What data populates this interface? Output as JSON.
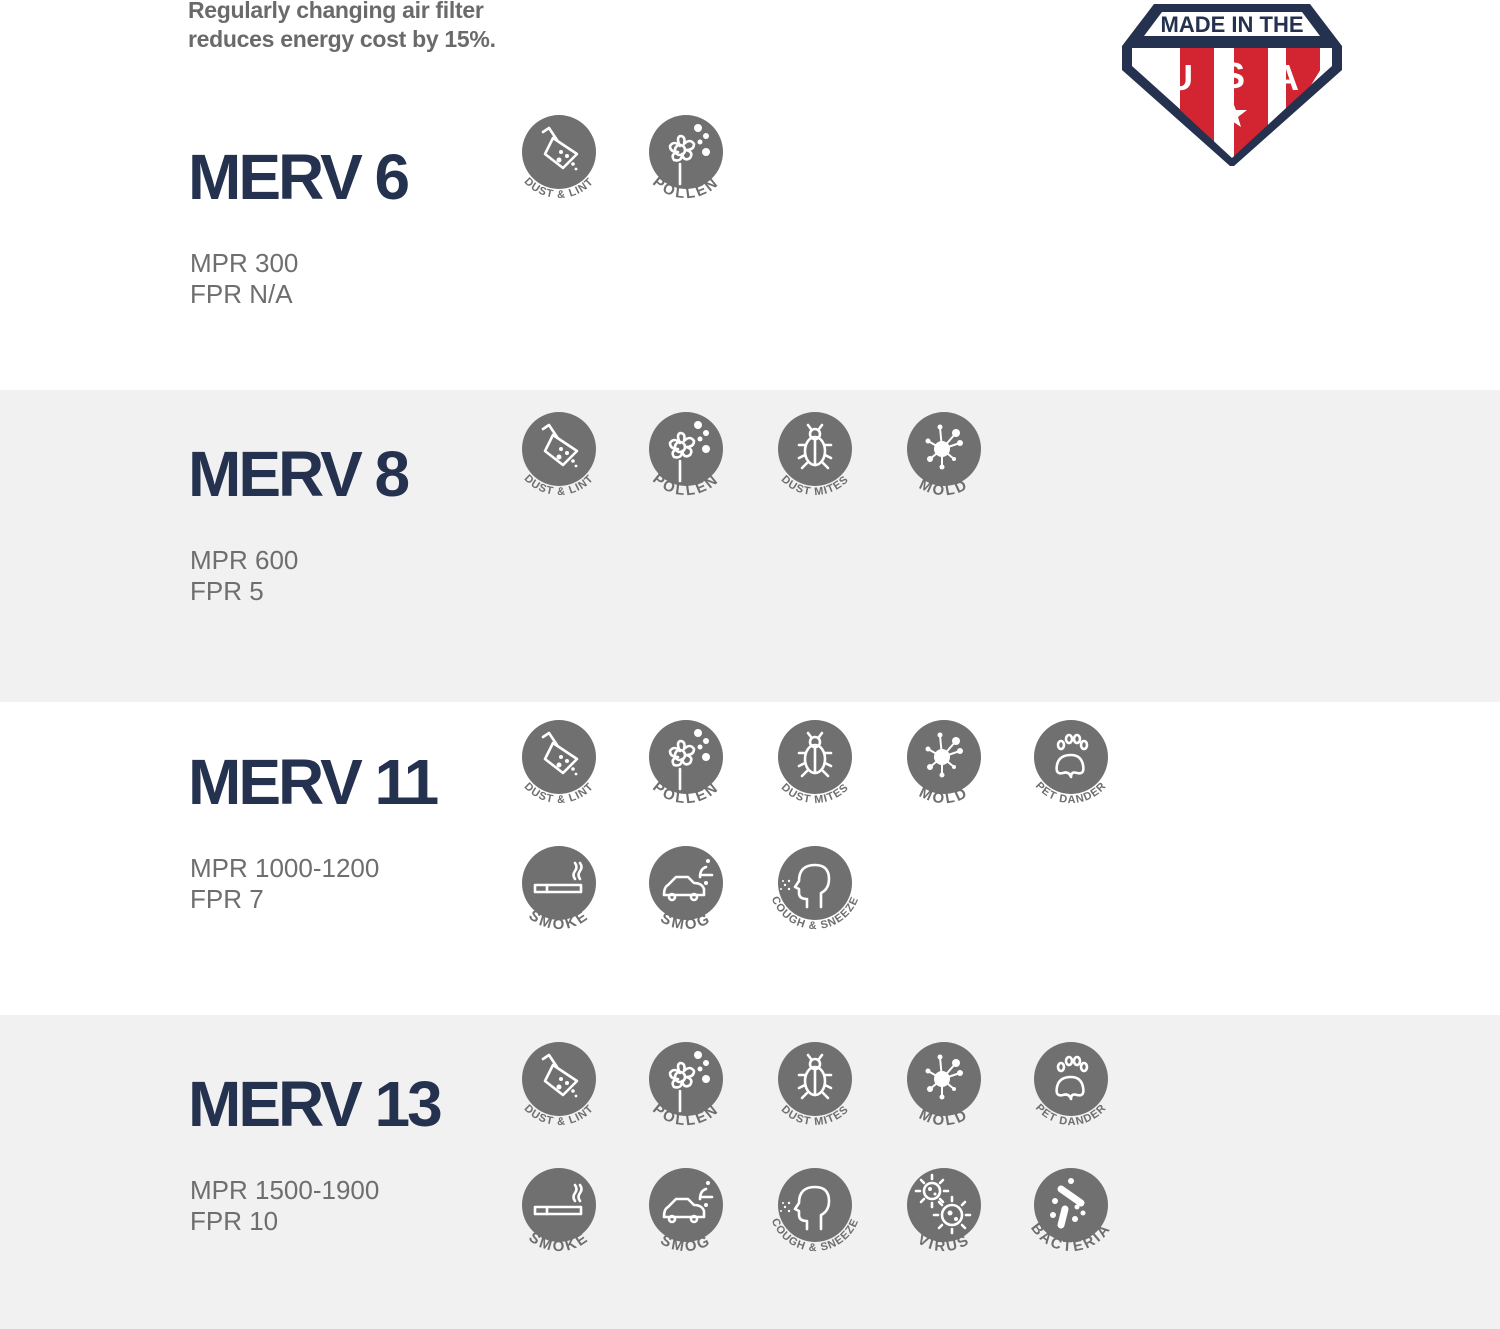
{
  "tagline": [
    "Regularly changing air filter",
    "reduces energy cost by 15%."
  ],
  "badge": {
    "top_text": "MADE IN THE",
    "letters": [
      "U",
      "S",
      "A"
    ],
    "colors": {
      "navy": "#24324f",
      "red": "#d32431",
      "white": "#ffffff"
    }
  },
  "colors": {
    "title": "#24324f",
    "icon_fill": "#707070",
    "label": "#6e6e6e",
    "gray_band": "#f1f1f1"
  },
  "sections": [
    {
      "title": "MERV 6",
      "mpr": "MPR 300",
      "fpr": "FPR N/A",
      "rows": [
        [
          {
            "icon": "dust-lint",
            "label": "DUST & LINT"
          },
          {
            "icon": "pollen",
            "label": "POLLEN"
          }
        ]
      ]
    },
    {
      "title": "MERV 8",
      "mpr": "MPR 600",
      "fpr": "FPR 5",
      "rows": [
        [
          {
            "icon": "dust-lint",
            "label": "DUST & LINT"
          },
          {
            "icon": "pollen",
            "label": "POLLEN"
          },
          {
            "icon": "dust-mites",
            "label": "DUST  MITES"
          },
          {
            "icon": "mold",
            "label": "MOLD"
          }
        ]
      ]
    },
    {
      "title": "MERV 11",
      "mpr": "MPR 1000-1200",
      "fpr": "FPR 7",
      "rows": [
        [
          {
            "icon": "dust-lint",
            "label": "DUST & LINT"
          },
          {
            "icon": "pollen",
            "label": "POLLEN"
          },
          {
            "icon": "dust-mites",
            "label": "DUST  MITES"
          },
          {
            "icon": "mold",
            "label": "MOLD"
          },
          {
            "icon": "pet-dander",
            "label": "PET DANDER"
          }
        ],
        [
          {
            "icon": "smoke",
            "label": "SMOKE"
          },
          {
            "icon": "smog",
            "label": "SMOG"
          },
          {
            "icon": "cough-sneeze",
            "label": "COUGH & SNEEZE"
          }
        ]
      ]
    },
    {
      "title": "MERV 13",
      "mpr": "MPR 1500-1900",
      "fpr": "FPR 10",
      "rows": [
        [
          {
            "icon": "dust-lint",
            "label": "DUST & LINT"
          },
          {
            "icon": "pollen",
            "label": "POLLEN"
          },
          {
            "icon": "dust-mites",
            "label": "DUST  MITES"
          },
          {
            "icon": "mold",
            "label": "MOLD"
          },
          {
            "icon": "pet-dander",
            "label": "PET DANDER"
          }
        ],
        [
          {
            "icon": "smoke",
            "label": "SMOKE"
          },
          {
            "icon": "smog",
            "label": "SMOG"
          },
          {
            "icon": "cough-sneeze",
            "label": "COUGH & SNEEZE"
          },
          {
            "icon": "virus",
            "label": "VIRUS"
          },
          {
            "icon": "bacteria",
            "label": "BACTERIA"
          }
        ]
      ]
    }
  ]
}
